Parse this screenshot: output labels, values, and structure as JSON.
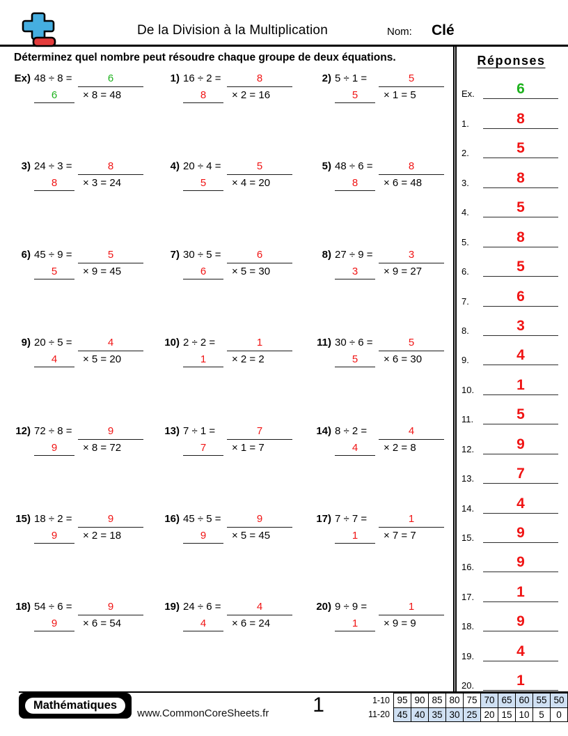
{
  "header": {
    "title": "De la Division à la Multiplication",
    "name_label": "Nom:",
    "name_value": "Clé"
  },
  "instructions": "Déterminez quel nombre peut résoudre chaque groupe de deux équations.",
  "colors": {
    "red": "#f01414",
    "green": "#1db21d",
    "shade": "#cfe0f3"
  },
  "problems": [
    {
      "label": "Ex)",
      "division": "48 ÷ 8 =",
      "answer": "6",
      "multiplication": "× 8 = 48",
      "color": "green"
    },
    {
      "label": "1)",
      "division": "16 ÷ 2 =",
      "answer": "8",
      "multiplication": "× 2 = 16",
      "color": "red"
    },
    {
      "label": "2)",
      "division": "5 ÷ 1 =",
      "answer": "5",
      "multiplication": "× 1 = 5",
      "color": "red"
    },
    {
      "label": "3)",
      "division": "24 ÷ 3 =",
      "answer": "8",
      "multiplication": "× 3 = 24",
      "color": "red"
    },
    {
      "label": "4)",
      "division": "20 ÷ 4 =",
      "answer": "5",
      "multiplication": "× 4 = 20",
      "color": "red"
    },
    {
      "label": "5)",
      "division": "48 ÷ 6 =",
      "answer": "8",
      "multiplication": "× 6 = 48",
      "color": "red"
    },
    {
      "label": "6)",
      "division": "45 ÷ 9 =",
      "answer": "5",
      "multiplication": "× 9 = 45",
      "color": "red"
    },
    {
      "label": "7)",
      "division": "30 ÷ 5 =",
      "answer": "6",
      "multiplication": "× 5 = 30",
      "color": "red"
    },
    {
      "label": "8)",
      "division": "27 ÷ 9 =",
      "answer": "3",
      "multiplication": "× 9 = 27",
      "color": "red"
    },
    {
      "label": "9)",
      "division": "20 ÷ 5 =",
      "answer": "4",
      "multiplication": "× 5 = 20",
      "color": "red"
    },
    {
      "label": "10)",
      "division": "2 ÷ 2 =",
      "answer": "1",
      "multiplication": "× 2 = 2",
      "color": "red"
    },
    {
      "label": "11)",
      "division": "30 ÷ 6 =",
      "answer": "5",
      "multiplication": "× 6 = 30",
      "color": "red"
    },
    {
      "label": "12)",
      "division": "72 ÷ 8 =",
      "answer": "9",
      "multiplication": "× 8 = 72",
      "color": "red"
    },
    {
      "label": "13)",
      "division": "7 ÷ 1 =",
      "answer": "7",
      "multiplication": "× 1 = 7",
      "color": "red"
    },
    {
      "label": "14)",
      "division": "8 ÷ 2 =",
      "answer": "4",
      "multiplication": "× 2 = 8",
      "color": "red"
    },
    {
      "label": "15)",
      "division": "18 ÷ 2 =",
      "answer": "9",
      "multiplication": "× 2 = 18",
      "color": "red"
    },
    {
      "label": "16)",
      "division": "45 ÷ 5 =",
      "answer": "9",
      "multiplication": "× 5 = 45",
      "color": "red"
    },
    {
      "label": "17)",
      "division": "7 ÷ 7 =",
      "answer": "1",
      "multiplication": "× 7 = 7",
      "color": "red"
    },
    {
      "label": "18)",
      "division": "54 ÷ 6 =",
      "answer": "9",
      "multiplication": "× 6 = 54",
      "color": "red"
    },
    {
      "label": "19)",
      "division": "24 ÷ 6 =",
      "answer": "4",
      "multiplication": "× 6 = 24",
      "color": "red"
    },
    {
      "label": "20)",
      "division": "9 ÷ 9 =",
      "answer": "1",
      "multiplication": "× 9 = 9",
      "color": "red"
    }
  ],
  "answers_panel": {
    "title": "Réponses",
    "items": [
      {
        "label": "Ex.",
        "value": "6",
        "color": "green"
      },
      {
        "label": "1.",
        "value": "8",
        "color": "red"
      },
      {
        "label": "2.",
        "value": "5",
        "color": "red"
      },
      {
        "label": "3.",
        "value": "8",
        "color": "red"
      },
      {
        "label": "4.",
        "value": "5",
        "color": "red"
      },
      {
        "label": "5.",
        "value": "8",
        "color": "red"
      },
      {
        "label": "6.",
        "value": "5",
        "color": "red"
      },
      {
        "label": "7.",
        "value": "6",
        "color": "red"
      },
      {
        "label": "8.",
        "value": "3",
        "color": "red"
      },
      {
        "label": "9.",
        "value": "4",
        "color": "red"
      },
      {
        "label": "10.",
        "value": "1",
        "color": "red"
      },
      {
        "label": "11.",
        "value": "5",
        "color": "red"
      },
      {
        "label": "12.",
        "value": "9",
        "color": "red"
      },
      {
        "label": "13.",
        "value": "7",
        "color": "red"
      },
      {
        "label": "14.",
        "value": "4",
        "color": "red"
      },
      {
        "label": "15.",
        "value": "9",
        "color": "red"
      },
      {
        "label": "16.",
        "value": "9",
        "color": "red"
      },
      {
        "label": "17.",
        "value": "1",
        "color": "red"
      },
      {
        "label": "18.",
        "value": "9",
        "color": "red"
      },
      {
        "label": "19.",
        "value": "4",
        "color": "red"
      },
      {
        "label": "20.",
        "value": "1",
        "color": "red"
      }
    ]
  },
  "footer": {
    "badge": "Mathématiques",
    "website": "www.CommonCoreSheets.fr",
    "page_number": "1",
    "grading": {
      "rows": [
        {
          "label": "1-10",
          "cells": [
            {
              "value": "95",
              "shaded": false
            },
            {
              "value": "90",
              "shaded": false
            },
            {
              "value": "85",
              "shaded": false
            },
            {
              "value": "80",
              "shaded": false
            },
            {
              "value": "75",
              "shaded": false
            },
            {
              "value": "70",
              "shaded": true
            },
            {
              "value": "65",
              "shaded": true
            },
            {
              "value": "60",
              "shaded": true
            },
            {
              "value": "55",
              "shaded": true
            },
            {
              "value": "50",
              "shaded": true
            }
          ]
        },
        {
          "label": "11-20",
          "cells": [
            {
              "value": "45",
              "shaded": true
            },
            {
              "value": "40",
              "shaded": true
            },
            {
              "value": "35",
              "shaded": true
            },
            {
              "value": "30",
              "shaded": true
            },
            {
              "value": "25",
              "shaded": true
            },
            {
              "value": "20",
              "shaded": false
            },
            {
              "value": "15",
              "shaded": false
            },
            {
              "value": "10",
              "shaded": false
            },
            {
              "value": "5",
              "shaded": false
            },
            {
              "value": "0",
              "shaded": false
            }
          ]
        }
      ]
    }
  }
}
